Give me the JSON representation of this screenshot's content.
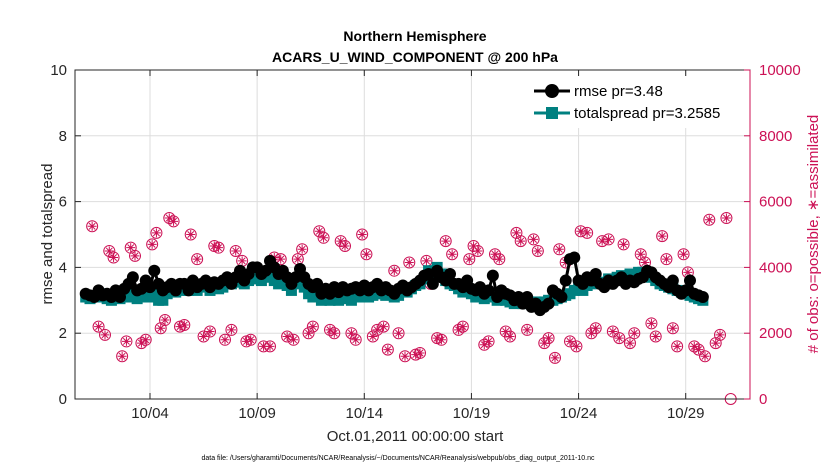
{
  "chart_data": {
    "type": "line",
    "title": "Northern Hemisphere",
    "subtitle": "ACARS_U_WIND_COMPONENT @ 200 hPa",
    "xlabel": "Oct.01,2011 00:00:00 start",
    "ylabel": "rmse and totalspread",
    "y2label": "# of obs: o=possible, ∗=assimilated",
    "footnote": "data file: /Users/gharamti/Documents/NCAR/Reanalysis/~/Documents/NCAR/Reanalysis/webpub/obs_diag_output_2011-10.nc",
    "xlim": [
      0.5,
      32.0
    ],
    "ylim": [
      0,
      10
    ],
    "y2lim": [
      0,
      10000
    ],
    "xticks": [
      4,
      9,
      14,
      19,
      24,
      29
    ],
    "xticklabels": [
      "10/04",
      "10/09",
      "10/14",
      "10/19",
      "10/24",
      "10/29"
    ],
    "yticks": [
      0,
      2,
      4,
      6,
      8,
      10
    ],
    "yticklabels": [
      "0",
      "2",
      "4",
      "6",
      "8",
      "10"
    ],
    "y2ticks": [
      0,
      2000,
      4000,
      6000,
      8000,
      10000
    ],
    "y2ticklabels": [
      "0",
      "2000",
      "4000",
      "6000",
      "8000",
      "10000"
    ],
    "grid": true,
    "legend_position": "top-right",
    "colors": {
      "rmse": "#000000",
      "totalspread": "#008080",
      "obs": "#cc1155",
      "grid": "#dddddd",
      "axis": "#262626"
    },
    "series": [
      {
        "name": "rmse pr=3.48",
        "values": [
          3.2,
          3.15,
          3.1,
          3.3,
          3.15,
          3.2,
          3.1,
          3.3,
          3.1,
          3.35,
          3.5,
          3.7,
          3.3,
          3.35,
          3.6,
          3.4,
          3.9,
          3.5,
          3.3,
          3.4,
          3.5,
          3.3,
          3.5,
          3.5,
          3.3,
          3.6,
          3.4,
          3.5,
          3.6,
          3.4,
          3.55,
          3.5,
          3.6,
          3.7,
          3.5,
          3.7,
          3.9,
          3.6,
          3.8,
          4.0,
          4.0,
          3.8,
          3.9,
          4.2,
          4.0,
          3.8,
          3.9,
          3.7,
          3.5,
          3.7,
          3.95,
          3.7,
          3.5,
          3.4,
          3.5,
          3.2,
          3.35,
          3.2,
          3.4,
          3.25,
          3.4,
          3.3,
          3.35,
          3.4,
          3.3,
          3.45,
          3.3,
          3.4,
          3.5,
          3.3,
          3.4,
          3.3,
          3.2,
          3.35,
          3.45,
          3.3,
          3.4,
          3.5,
          3.6,
          3.75,
          3.8,
          3.5,
          3.9,
          3.7,
          3.6,
          3.8,
          3.5,
          3.5,
          3.4,
          3.6,
          3.35,
          3.3,
          3.4,
          3.2,
          3.3,
          3.75,
          3.1,
          3.3,
          3.2,
          3.15,
          3.0,
          3.1,
          2.9,
          3.1,
          2.8,
          2.9,
          2.7,
          2.8,
          2.9,
          3.3,
          3.2,
          3.1,
          3.6,
          4.25,
          4.3,
          3.6,
          3.5,
          3.7,
          3.6,
          3.8,
          3.5,
          3.4,
          3.6,
          3.5,
          3.6,
          3.7,
          3.5,
          3.6,
          3.55,
          3.65,
          3.7,
          3.9,
          3.85,
          3.7,
          3.6,
          3.5,
          3.4,
          3.6,
          3.3,
          3.2,
          3.3,
          3.6,
          3.2,
          3.15,
          3.1
        ],
        "start": 1.0,
        "step": 0.2
      },
      {
        "name": "totalspread pr=3.2585",
        "values": [
          3.1,
          3.05,
          3.1,
          3.1,
          3.2,
          3.05,
          3.0,
          3.1,
          3.05,
          3.2,
          3.1,
          3.2,
          3.05,
          3.1,
          3.15,
          3.1,
          3.2,
          3.0,
          3.0,
          3.2,
          3.3,
          3.25,
          3.3,
          3.35,
          3.3,
          3.4,
          3.3,
          3.4,
          3.5,
          3.3,
          3.4,
          3.35,
          3.4,
          3.5,
          3.5,
          3.55,
          3.6,
          3.5,
          3.6,
          3.7,
          3.65,
          3.6,
          3.7,
          3.75,
          3.6,
          3.5,
          3.55,
          3.45,
          3.3,
          3.5,
          3.6,
          3.4,
          3.2,
          3.1,
          3.2,
          3.0,
          3.05,
          3.0,
          3.05,
          3.0,
          3.1,
          3.05,
          3.0,
          3.1,
          3.1,
          3.2,
          3.1,
          3.15,
          3.2,
          3.2,
          3.15,
          3.2,
          3.1,
          3.15,
          3.3,
          3.25,
          3.35,
          3.45,
          3.5,
          3.65,
          3.9,
          3.8,
          4.0,
          3.8,
          3.6,
          3.5,
          3.45,
          3.35,
          3.25,
          3.4,
          3.2,
          3.1,
          3.2,
          3.05,
          3.1,
          3.15,
          3.0,
          3.05,
          3.0,
          2.95,
          2.9,
          3.0,
          2.9,
          3.0,
          2.9,
          2.95,
          2.9,
          2.95,
          3.0,
          3.0,
          3.05,
          3.1,
          3.15,
          3.2,
          3.3,
          3.35,
          3.3,
          3.45,
          3.5,
          3.6,
          3.55,
          3.5,
          3.65,
          3.6,
          3.7,
          3.75,
          3.7,
          3.8,
          3.75,
          3.85,
          3.85,
          3.75,
          3.7,
          3.6,
          3.5,
          3.45,
          3.4,
          3.35,
          3.3,
          3.25,
          3.2,
          3.15,
          3.1,
          3.05,
          3.0
        ],
        "start": 1.0,
        "step": 0.2
      }
    ],
    "obs_counts": {
      "possible": [
        [
          1.3,
          5250
        ],
        [
          1.6,
          2200
        ],
        [
          1.9,
          1950
        ],
        [
          2.1,
          4500
        ],
        [
          2.3,
          4300
        ],
        [
          2.7,
          1300
        ],
        [
          2.9,
          1750
        ],
        [
          3.1,
          4600
        ],
        [
          3.3,
          4350
        ],
        [
          3.6,
          1700
        ],
        [
          3.8,
          1800
        ],
        [
          4.1,
          4700
        ],
        [
          4.3,
          5050
        ],
        [
          4.5,
          2150
        ],
        [
          4.7,
          2400
        ],
        [
          4.9,
          5500
        ],
        [
          5.1,
          5400
        ],
        [
          5.4,
          2200
        ],
        [
          5.6,
          2250
        ],
        [
          5.9,
          5000
        ],
        [
          6.2,
          4250
        ],
        [
          6.5,
          1900
        ],
        [
          6.8,
          2050
        ],
        [
          7.0,
          4650
        ],
        [
          7.2,
          4600
        ],
        [
          7.5,
          1800
        ],
        [
          7.8,
          2100
        ],
        [
          8.0,
          4500
        ],
        [
          8.3,
          4200
        ],
        [
          8.5,
          1750
        ],
        [
          8.7,
          1800
        ],
        [
          9.0,
          3700
        ],
        [
          9.3,
          1600
        ],
        [
          9.6,
          1600
        ],
        [
          9.8,
          4300
        ],
        [
          10.1,
          4250
        ],
        [
          10.4,
          1900
        ],
        [
          10.7,
          1800
        ],
        [
          10.9,
          4250
        ],
        [
          11.1,
          4550
        ],
        [
          11.4,
          2000
        ],
        [
          11.6,
          2200
        ],
        [
          11.9,
          5100
        ],
        [
          12.1,
          4900
        ],
        [
          12.4,
          2100
        ],
        [
          12.6,
          2000
        ],
        [
          12.9,
          4800
        ],
        [
          13.1,
          4650
        ],
        [
          13.4,
          2000
        ],
        [
          13.6,
          1800
        ],
        [
          13.9,
          5000
        ],
        [
          14.1,
          4400
        ],
        [
          14.4,
          1900
        ],
        [
          14.6,
          2100
        ],
        [
          14.9,
          2200
        ],
        [
          15.1,
          1500
        ],
        [
          15.4,
          3900
        ],
        [
          15.6,
          2000
        ],
        [
          15.9,
          1300
        ],
        [
          16.1,
          4150
        ],
        [
          16.4,
          1350
        ],
        [
          16.6,
          1400
        ],
        [
          16.9,
          4200
        ],
        [
          17.1,
          3500
        ],
        [
          17.4,
          1850
        ],
        [
          17.6,
          1800
        ],
        [
          17.8,
          4800
        ],
        [
          18.1,
          4400
        ],
        [
          18.4,
          2100
        ],
        [
          18.6,
          2200
        ],
        [
          18.9,
          4250
        ],
        [
          19.1,
          4650
        ],
        [
          19.3,
          4500
        ],
        [
          19.6,
          1650
        ],
        [
          19.8,
          1750
        ],
        [
          20.1,
          4400
        ],
        [
          20.3,
          4250
        ],
        [
          20.6,
          2050
        ],
        [
          20.8,
          1900
        ],
        [
          21.1,
          5050
        ],
        [
          21.3,
          4800
        ],
        [
          21.6,
          2100
        ],
        [
          21.9,
          4850
        ],
        [
          22.1,
          4500
        ],
        [
          22.4,
          1700
        ],
        [
          22.6,
          1850
        ],
        [
          22.9,
          1250
        ],
        [
          23.1,
          4550
        ],
        [
          23.4,
          4150
        ],
        [
          23.6,
          1750
        ],
        [
          23.9,
          1600
        ],
        [
          24.1,
          5100
        ],
        [
          24.4,
          5050
        ],
        [
          24.6,
          2000
        ],
        [
          24.8,
          2150
        ],
        [
          25.1,
          4800
        ],
        [
          25.4,
          4850
        ],
        [
          25.6,
          2050
        ],
        [
          25.9,
          1850
        ],
        [
          26.1,
          4700
        ],
        [
          26.4,
          1700
        ],
        [
          26.6,
          2000
        ],
        [
          26.9,
          4400
        ],
        [
          27.1,
          4150
        ],
        [
          27.4,
          2300
        ],
        [
          27.6,
          1900
        ],
        [
          27.9,
          4950
        ],
        [
          28.1,
          4250
        ],
        [
          28.4,
          2150
        ],
        [
          28.6,
          1600
        ],
        [
          28.9,
          4400
        ],
        [
          29.1,
          3850
        ],
        [
          29.4,
          1600
        ],
        [
          29.6,
          1500
        ],
        [
          29.9,
          1300
        ],
        [
          30.1,
          5450
        ],
        [
          30.4,
          1700
        ],
        [
          30.6,
          1950
        ],
        [
          30.9,
          5500
        ],
        [
          31.1,
          0
        ]
      ],
      "assimilated": [
        [
          1.3,
          5250
        ],
        [
          1.6,
          2200
        ],
        [
          1.9,
          1950
        ],
        [
          2.1,
          4500
        ],
        [
          2.3,
          4300
        ],
        [
          2.7,
          1300
        ],
        [
          2.9,
          1750
        ],
        [
          3.1,
          4600
        ],
        [
          3.3,
          4350
        ],
        [
          3.6,
          1700
        ],
        [
          3.8,
          1800
        ],
        [
          4.1,
          4700
        ],
        [
          4.3,
          5050
        ],
        [
          4.5,
          2150
        ],
        [
          4.7,
          2400
        ],
        [
          4.9,
          5500
        ],
        [
          5.1,
          5400
        ],
        [
          5.4,
          2200
        ],
        [
          5.6,
          2250
        ],
        [
          5.9,
          5000
        ],
        [
          6.2,
          4250
        ],
        [
          6.5,
          1900
        ],
        [
          6.8,
          2050
        ],
        [
          7.0,
          4650
        ],
        [
          7.2,
          4600
        ],
        [
          7.5,
          1800
        ],
        [
          7.8,
          2100
        ],
        [
          8.0,
          4500
        ],
        [
          8.3,
          4200
        ],
        [
          8.5,
          1750
        ],
        [
          8.7,
          1800
        ],
        [
          9.0,
          3700
        ],
        [
          9.3,
          1600
        ],
        [
          9.6,
          1600
        ],
        [
          9.8,
          4300
        ],
        [
          10.1,
          4250
        ],
        [
          10.4,
          1900
        ],
        [
          10.7,
          1800
        ],
        [
          10.9,
          4250
        ],
        [
          11.1,
          4550
        ],
        [
          11.4,
          2000
        ],
        [
          11.6,
          2200
        ],
        [
          11.9,
          5100
        ],
        [
          12.1,
          4900
        ],
        [
          12.4,
          2100
        ],
        [
          12.6,
          2000
        ],
        [
          12.9,
          4800
        ],
        [
          13.1,
          4650
        ],
        [
          13.4,
          2000
        ],
        [
          13.6,
          1800
        ],
        [
          13.9,
          5000
        ],
        [
          14.1,
          4400
        ],
        [
          14.4,
          1900
        ],
        [
          14.6,
          2100
        ],
        [
          14.9,
          2200
        ],
        [
          15.1,
          1500
        ],
        [
          15.4,
          3900
        ],
        [
          15.6,
          2000
        ],
        [
          15.9,
          1300
        ],
        [
          16.1,
          4150
        ],
        [
          16.4,
          1350
        ],
        [
          16.6,
          1400
        ],
        [
          16.9,
          4200
        ],
        [
          17.1,
          3500
        ],
        [
          17.4,
          1850
        ],
        [
          17.6,
          1800
        ],
        [
          17.8,
          4800
        ],
        [
          18.1,
          4400
        ],
        [
          18.4,
          2100
        ],
        [
          18.6,
          2200
        ],
        [
          18.9,
          4250
        ],
        [
          19.1,
          4650
        ],
        [
          19.3,
          4500
        ],
        [
          19.6,
          1650
        ],
        [
          19.8,
          1750
        ],
        [
          20.1,
          4400
        ],
        [
          20.3,
          4250
        ],
        [
          20.6,
          2050
        ],
        [
          20.8,
          1900
        ],
        [
          21.1,
          5050
        ],
        [
          21.3,
          4800
        ],
        [
          21.6,
          2100
        ],
        [
          21.9,
          4850
        ],
        [
          22.1,
          4500
        ],
        [
          22.4,
          1700
        ],
        [
          22.6,
          1850
        ],
        [
          22.9,
          1250
        ],
        [
          23.1,
          4550
        ],
        [
          23.4,
          4150
        ],
        [
          23.6,
          1750
        ],
        [
          23.9,
          1600
        ],
        [
          24.1,
          5100
        ],
        [
          24.4,
          5050
        ],
        [
          24.6,
          2000
        ],
        [
          24.8,
          2150
        ],
        [
          25.1,
          4800
        ],
        [
          25.4,
          4850
        ],
        [
          25.6,
          2050
        ],
        [
          25.9,
          1850
        ],
        [
          26.1,
          4700
        ],
        [
          26.4,
          1700
        ],
        [
          26.6,
          2000
        ],
        [
          26.9,
          4400
        ],
        [
          27.1,
          4150
        ],
        [
          27.4,
          2300
        ],
        [
          27.6,
          1900
        ],
        [
          27.9,
          4950
        ],
        [
          28.1,
          4250
        ],
        [
          28.4,
          2150
        ],
        [
          28.6,
          1600
        ],
        [
          28.9,
          4400
        ],
        [
          29.1,
          3850
        ],
        [
          29.4,
          1600
        ],
        [
          29.6,
          1500
        ],
        [
          29.9,
          1300
        ],
        [
          30.1,
          5450
        ],
        [
          30.4,
          1700
        ],
        [
          30.6,
          1950
        ],
        [
          30.9,
          5500
        ]
      ]
    }
  }
}
